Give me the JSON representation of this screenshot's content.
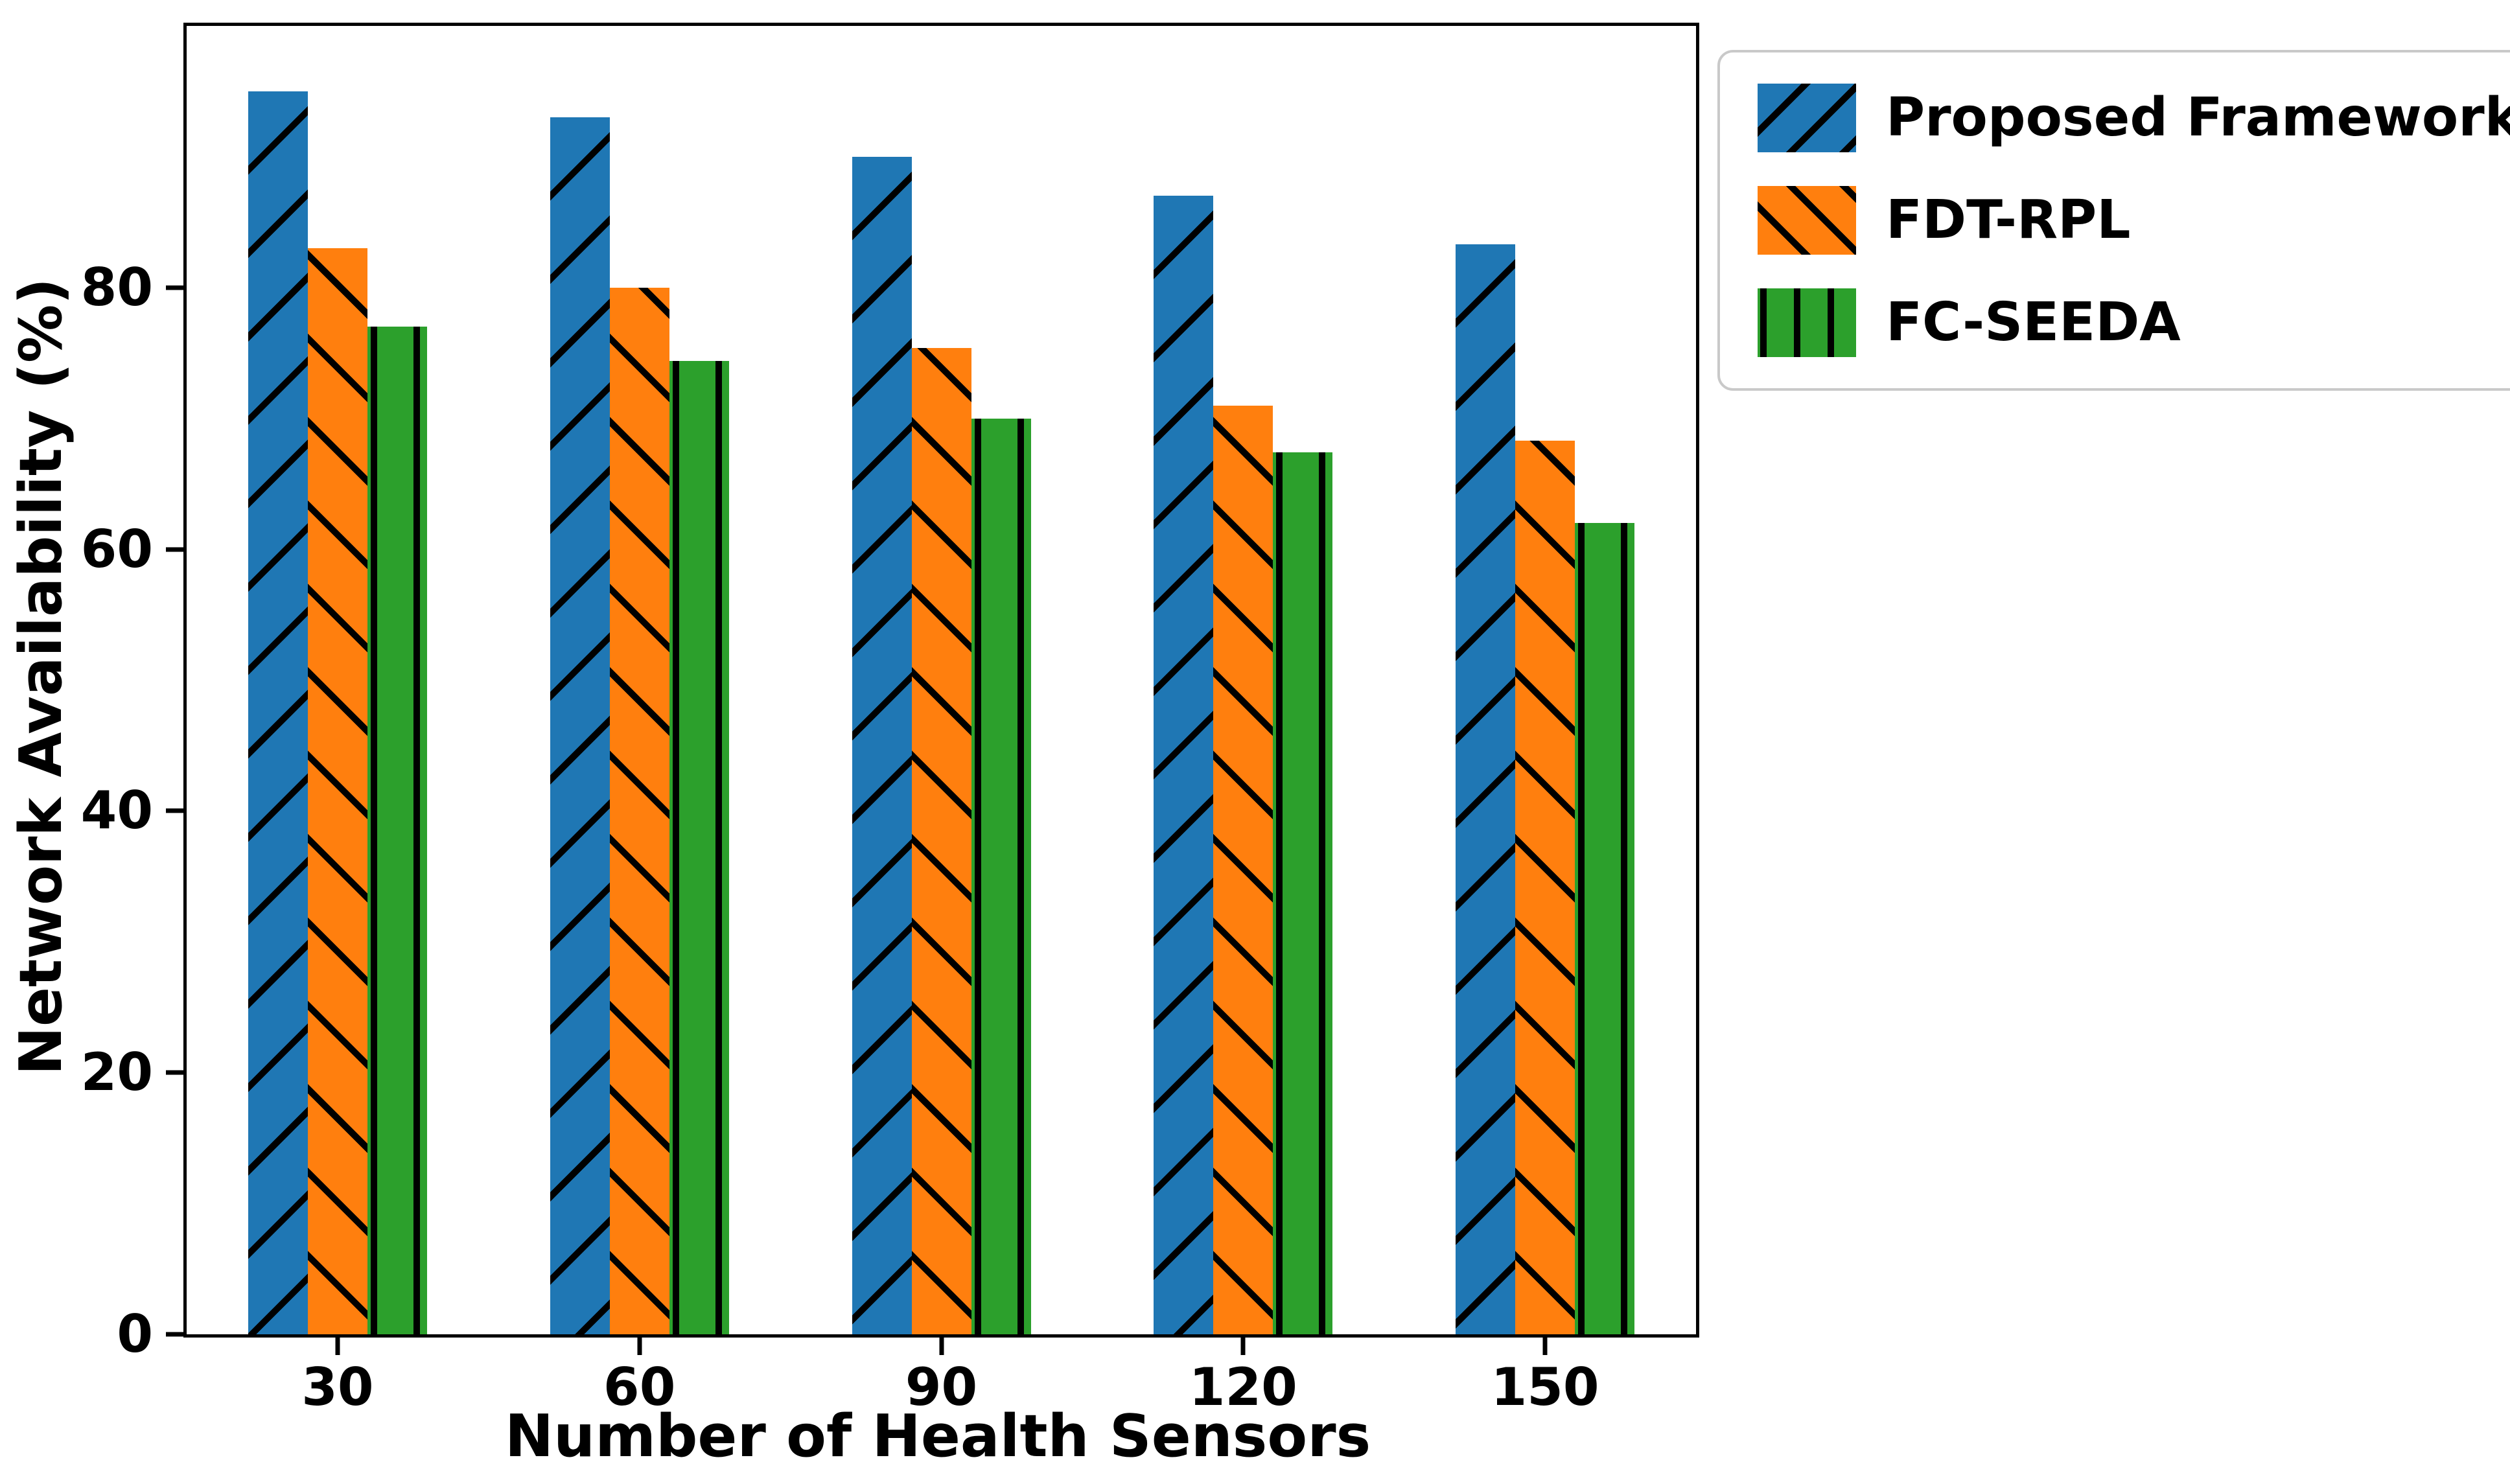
{
  "chart_data": {
    "type": "bar",
    "title": "",
    "xlabel": "Number of Health Sensors",
    "ylabel": "Network Availability (%)",
    "categories": [
      "30",
      "60",
      "90",
      "120",
      "150"
    ],
    "series": [
      {
        "name": "Proposed Framework",
        "color": "#1f77b4",
        "hatch": "/",
        "values": [
          95,
          93,
          90,
          87,
          83.3
        ]
      },
      {
        "name": "FDT-RPL",
        "color": "#ff7f0e",
        "hatch": "\\",
        "values": [
          83,
          80,
          75.4,
          71,
          68.3
        ]
      },
      {
        "name": "FC-SEEDA",
        "color": "#2ca02c",
        "hatch": "|",
        "values": [
          77,
          74.4,
          70,
          67.4,
          62
        ]
      }
    ],
    "ylim": [
      0,
      100
    ],
    "yticks": [
      0,
      20,
      40,
      60,
      80
    ],
    "grid": false,
    "hatch_color": "#000000",
    "legend_position": "upper right, outside axes"
  }
}
